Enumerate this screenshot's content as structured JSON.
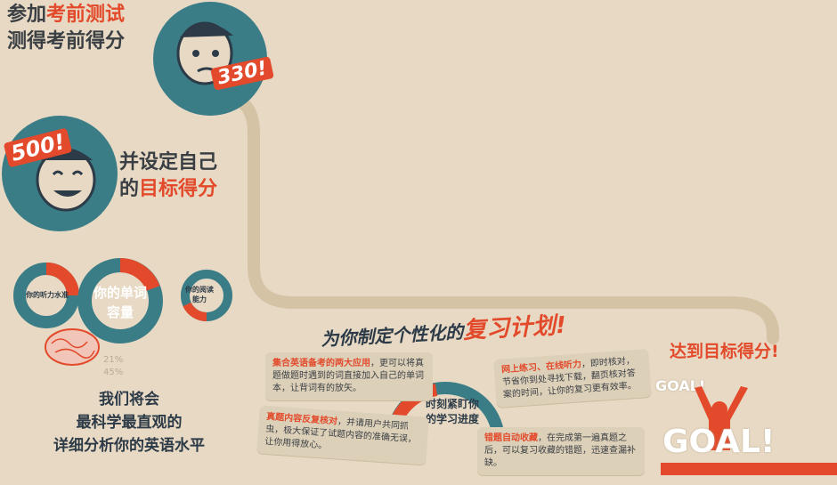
{
  "steps": {
    "step1_line1_prefix": "参加",
    "step1_line1_highlight": "考前测试",
    "step1_line2": "测得考前得分",
    "score_badge_1": "330!",
    "score_badge_2": "500!",
    "step2_line1": "并设定自己",
    "step2_line2_prefix": "的",
    "step2_line2_highlight": "目标得分"
  },
  "skills": {
    "listening": "你的听力水准",
    "vocab": "你的单词容量",
    "reading": "你的阅读能力",
    "pct_1": "21%",
    "pct_2": "45%"
  },
  "analysis": {
    "line1": "我们将会",
    "line2": "最科学最直观的",
    "line3": "详细分析你的英语水平"
  },
  "plan": {
    "title_prefix": "为你制定个性化的",
    "title_highlight": "复习计划!",
    "center_line1": "时刻紧盯你",
    "center_line2": "的学习进度",
    "card1_bold": "集合英语备考的两大应用",
    "card1_text": "，更可以将真题做题时遇到的词直接加入自己的单词本，让背词有的放矢。",
    "card2_bold": "网上练习、在线听力",
    "card2_text": "，即时核对，节省你到处寻找下载，翻页核对答案的时间，让你的复习更有效率。",
    "card3_bold": "真题内容反复核对",
    "card3_text": "，并请用户共同抓虫，极大保证了试题内容的准确无误，让你用得放心。",
    "card4_bold": "错题自动收藏",
    "card4_text": "，在完成第一遍真题之后，可以复习收藏的错题，迅速查漏补缺。"
  },
  "goal": {
    "title": "达到目标得分!",
    "small": "GOAL!",
    "big": "GOAL!"
  }
}
